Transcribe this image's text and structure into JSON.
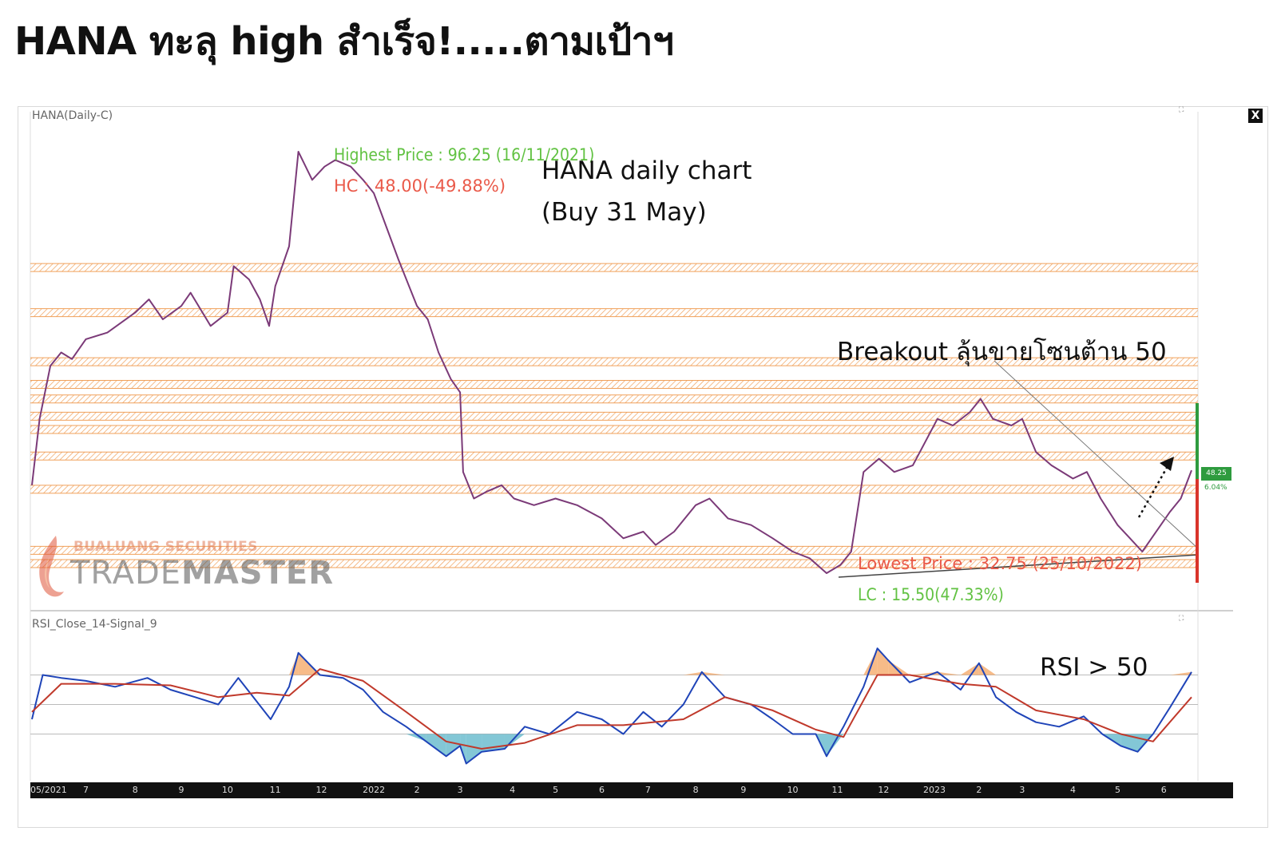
{
  "page_title": "HANA ทะลุ high สำเร็จ!.....ตามเป้าฯ",
  "panel": {
    "close_label": "X",
    "expand_icon": "⛶",
    "price_indicator_label": "HANA(Daily-C)",
    "rsi_indicator_label": "RSI_Close_14-Signal_9"
  },
  "annotations": {
    "highest": "Highest Price : 96.25 (16/11/2021)",
    "hc": "HC : 48.00(-49.88%)",
    "title_line1": "HANA daily chart",
    "title_line2": "(Buy 31 May)",
    "breakout": "Breakout ลุ้นขายโซนต้าน 50",
    "lowest": "Lowest Price : 32.75 (25/10/2022)",
    "lc": "LC : 15.50(47.33%)",
    "rsi_note": "RSI > 50"
  },
  "logo": {
    "top": "BUALUANG SECURITIES",
    "main_light": "TRADE",
    "main_bold": "MASTER"
  },
  "last_price": "48.25",
  "last_change": "6.04%",
  "colors": {
    "price_line": "#7b3a78",
    "rsi_line": "#1f44b8",
    "signal_line": "#c0392b",
    "zone": "#f0a05a",
    "overbought_fill": "#f4a460",
    "oversold_fill": "#5ab4c8"
  },
  "chart_data": [
    {
      "type": "line",
      "title": "HANA(Daily-C)",
      "x_range": [
        "2021-05",
        "2023-06"
      ],
      "ylim": [
        30,
        100
      ],
      "series": [
        {
          "points": [
            [
              "2021-05-27",
              46
            ],
            [
              "2021-06-01",
              56
            ],
            [
              "2021-06-08",
              64
            ],
            [
              "2021-06-15",
              66
            ],
            [
              "2021-06-22",
              65
            ],
            [
              "2021-07-01",
              68
            ],
            [
              "2021-07-15",
              69
            ],
            [
              "2021-08-02",
              72
            ],
            [
              "2021-08-11",
              74
            ],
            [
              "2021-08-20",
              71
            ],
            [
              "2021-09-01",
              73
            ],
            [
              "2021-09-07",
              75
            ],
            [
              "2021-09-20",
              70
            ],
            [
              "2021-10-01",
              72
            ],
            [
              "2021-10-05",
              79
            ],
            [
              "2021-10-15",
              77
            ],
            [
              "2021-10-22",
              74
            ],
            [
              "2021-10-28",
              70
            ],
            [
              "2021-11-01",
              76
            ],
            [
              "2021-11-10",
              82
            ],
            [
              "2021-11-16",
              96.25
            ],
            [
              "2021-11-25",
              92
            ],
            [
              "2021-12-03",
              94
            ],
            [
              "2021-12-10",
              95
            ],
            [
              "2021-12-20",
              94
            ],
            [
              "2021-12-28",
              92
            ],
            [
              "2022-01-04",
              90
            ],
            [
              "2022-01-12",
              85
            ],
            [
              "2022-01-20",
              80
            ],
            [
              "2022-02-01",
              73
            ],
            [
              "2022-02-08",
              71
            ],
            [
              "2022-02-15",
              66
            ],
            [
              "2022-02-23",
              62
            ],
            [
              "2022-03-01",
              60
            ],
            [
              "2022-03-03",
              48
            ],
            [
              "2022-03-10",
              44
            ],
            [
              "2022-03-18",
              45
            ],
            [
              "2022-03-28",
              46
            ],
            [
              "2022-04-05",
              44
            ],
            [
              "2022-04-18",
              43
            ],
            [
              "2022-05-02",
              44
            ],
            [
              "2022-05-16",
              43
            ],
            [
              "2022-06-01",
              41
            ],
            [
              "2022-06-15",
              38
            ],
            [
              "2022-06-28",
              39
            ],
            [
              "2022-07-06",
              37
            ],
            [
              "2022-07-18",
              39
            ],
            [
              "2022-08-01",
              43
            ],
            [
              "2022-08-10",
              44
            ],
            [
              "2022-08-22",
              41
            ],
            [
              "2022-09-06",
              40
            ],
            [
              "2022-09-20",
              38
            ],
            [
              "2022-10-03",
              36
            ],
            [
              "2022-10-14",
              35
            ],
            [
              "2022-10-25",
              32.75
            ],
            [
              "2022-11-03",
              34
            ],
            [
              "2022-11-10",
              36
            ],
            [
              "2022-11-18",
              48
            ],
            [
              "2022-11-28",
              50
            ],
            [
              "2022-12-08",
              48
            ],
            [
              "2022-12-20",
              49
            ],
            [
              "2023-01-05",
              56
            ],
            [
              "2023-01-15",
              55
            ],
            [
              "2023-01-26",
              57
            ],
            [
              "2023-02-02",
              59
            ],
            [
              "2023-02-10",
              56
            ],
            [
              "2023-02-22",
              55
            ],
            [
              "2023-03-01",
              56
            ],
            [
              "2023-03-10",
              51
            ],
            [
              "2023-03-20",
              49
            ],
            [
              "2023-04-03",
              47
            ],
            [
              "2023-04-12",
              48
            ],
            [
              "2023-04-21",
              44
            ],
            [
              "2023-05-02",
              40
            ],
            [
              "2023-05-10",
              38
            ],
            [
              "2023-05-18",
              36
            ],
            [
              "2023-05-24",
              38
            ],
            [
              "2023-06-05",
              42
            ],
            [
              "2023-06-12",
              44
            ],
            [
              "2023-06-19",
              48.25
            ]
          ]
        }
      ],
      "zones": [
        78.8,
        72.0,
        64.6,
        61.2,
        59.0,
        56.4,
        54.4,
        50.4,
        45.4,
        36.2,
        34.2
      ]
    },
    {
      "type": "line",
      "title": "RSI_Close_14-Signal_9",
      "ylim": [
        0,
        100
      ],
      "series": [
        {
          "name": "RSI",
          "points": [
            [
              "2021-05-27",
              40
            ],
            [
              "2021-06-03",
              70
            ],
            [
              "2021-06-15",
              68
            ],
            [
              "2021-07-01",
              66
            ],
            [
              "2021-07-20",
              62
            ],
            [
              "2021-08-10",
              68
            ],
            [
              "2021-08-25",
              60
            ],
            [
              "2021-09-10",
              55
            ],
            [
              "2021-09-25",
              50
            ],
            [
              "2021-10-08",
              68
            ],
            [
              "2021-10-20",
              52
            ],
            [
              "2021-10-29",
              40
            ],
            [
              "2021-11-10",
              62
            ],
            [
              "2021-11-16",
              85
            ],
            [
              "2021-11-30",
              70
            ],
            [
              "2021-12-15",
              68
            ],
            [
              "2021-12-28",
              60
            ],
            [
              "2022-01-10",
              45
            ],
            [
              "2022-01-25",
              35
            ],
            [
              "2022-02-07",
              25
            ],
            [
              "2022-02-20",
              15
            ],
            [
              "2022-03-01",
              22
            ],
            [
              "2022-03-05",
              10
            ],
            [
              "2022-03-15",
              18
            ],
            [
              "2022-03-30",
              20
            ],
            [
              "2022-04-12",
              35
            ],
            [
              "2022-04-28",
              30
            ],
            [
              "2022-05-16",
              45
            ],
            [
              "2022-06-01",
              40
            ],
            [
              "2022-06-15",
              30
            ],
            [
              "2022-06-28",
              45
            ],
            [
              "2022-07-10",
              35
            ],
            [
              "2022-07-24",
              50
            ],
            [
              "2022-08-05",
              72
            ],
            [
              "2022-08-20",
              55
            ],
            [
              "2022-09-06",
              50
            ],
            [
              "2022-09-20",
              40
            ],
            [
              "2022-10-03",
              30
            ],
            [
              "2022-10-18",
              30
            ],
            [
              "2022-10-25",
              15
            ],
            [
              "2022-11-05",
              35
            ],
            [
              "2022-11-18",
              62
            ],
            [
              "2022-11-27",
              88
            ],
            [
              "2022-12-04",
              80
            ],
            [
              "2022-12-18",
              65
            ],
            [
              "2023-01-05",
              72
            ],
            [
              "2023-01-20",
              60
            ],
            [
              "2023-02-01",
              78
            ],
            [
              "2023-02-12",
              55
            ],
            [
              "2023-02-25",
              45
            ],
            [
              "2023-03-10",
              38
            ],
            [
              "2023-03-25",
              35
            ],
            [
              "2023-04-10",
              42
            ],
            [
              "2023-04-22",
              30
            ],
            [
              "2023-05-04",
              22
            ],
            [
              "2023-05-15",
              18
            ],
            [
              "2023-05-25",
              30
            ],
            [
              "2023-06-05",
              48
            ],
            [
              "2023-06-19",
              72
            ]
          ]
        },
        {
          "name": "Signal",
          "points": [
            [
              "2021-05-27",
              45
            ],
            [
              "2021-06-15",
              64
            ],
            [
              "2021-07-20",
              64
            ],
            [
              "2021-08-25",
              63
            ],
            [
              "2021-09-25",
              55
            ],
            [
              "2021-10-20",
              58
            ],
            [
              "2021-11-10",
              56
            ],
            [
              "2021-11-30",
              74
            ],
            [
              "2021-12-28",
              66
            ],
            [
              "2022-01-25",
              45
            ],
            [
              "2022-02-20",
              25
            ],
            [
              "2022-03-15",
              20
            ],
            [
              "2022-04-12",
              24
            ],
            [
              "2022-05-16",
              36
            ],
            [
              "2022-06-15",
              36
            ],
            [
              "2022-07-24",
              40
            ],
            [
              "2022-08-20",
              55
            ],
            [
              "2022-09-20",
              46
            ],
            [
              "2022-10-18",
              33
            ],
            [
              "2022-11-05",
              28
            ],
            [
              "2022-11-27",
              70
            ],
            [
              "2022-12-18",
              70
            ],
            [
              "2023-01-20",
              64
            ],
            [
              "2023-02-12",
              62
            ],
            [
              "2023-03-10",
              46
            ],
            [
              "2023-04-10",
              40
            ],
            [
              "2023-05-04",
              30
            ],
            [
              "2023-05-25",
              25
            ],
            [
              "2023-06-19",
              55
            ]
          ]
        }
      ],
      "levels": [
        70,
        50,
        30
      ]
    }
  ],
  "x_axis": {
    "ticks": [
      {
        "label": "05/2021",
        "date": "2021-05-27"
      },
      {
        "label": "7",
        "date": "2021-07-01"
      },
      {
        "label": "8",
        "date": "2021-08-02"
      },
      {
        "label": "9",
        "date": "2021-09-01"
      },
      {
        "label": "10",
        "date": "2021-10-01"
      },
      {
        "label": "11",
        "date": "2021-11-01"
      },
      {
        "label": "12",
        "date": "2021-12-01"
      },
      {
        "label": "2022",
        "date": "2022-01-04"
      },
      {
        "label": "2",
        "date": "2022-02-01"
      },
      {
        "label": "3",
        "date": "2022-03-01"
      },
      {
        "label": "4",
        "date": "2022-04-04"
      },
      {
        "label": "5",
        "date": "2022-05-02"
      },
      {
        "label": "6",
        "date": "2022-06-01"
      },
      {
        "label": "7",
        "date": "2022-07-01"
      },
      {
        "label": "8",
        "date": "2022-08-01"
      },
      {
        "label": "9",
        "date": "2022-09-01"
      },
      {
        "label": "10",
        "date": "2022-10-03"
      },
      {
        "label": "11",
        "date": "2022-11-01"
      },
      {
        "label": "12",
        "date": "2022-12-01"
      },
      {
        "label": "2023",
        "date": "2023-01-03"
      },
      {
        "label": "2",
        "date": "2023-02-01"
      },
      {
        "label": "3",
        "date": "2023-03-01"
      },
      {
        "label": "4",
        "date": "2023-04-03"
      },
      {
        "label": "5",
        "date": "2023-05-02"
      },
      {
        "label": "6",
        "date": "2023-06-01"
      }
    ]
  }
}
